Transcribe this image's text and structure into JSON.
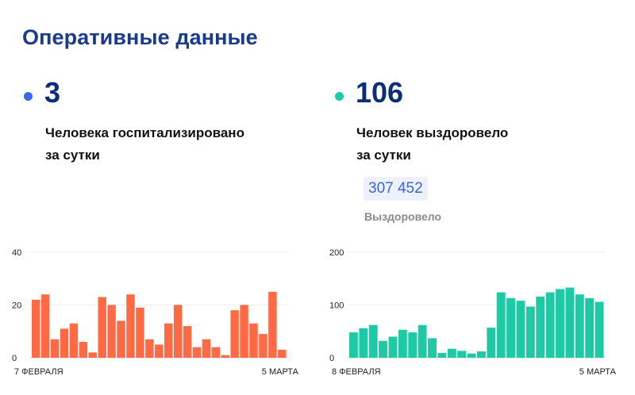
{
  "header": {
    "title": "Оперативные данные"
  },
  "stats": {
    "hospitalized": {
      "value": "3",
      "label_line1": "Человека госпитализировано",
      "label_line2": "за сутки",
      "dot_color": "#3d6ae0"
    },
    "recovered": {
      "value": "106",
      "label_line1": "Человек выздоровело",
      "label_line2": "за сутки",
      "dot_color": "#1ec9a6",
      "total_value": "307 452",
      "total_label": "Выздоровело"
    }
  },
  "chart_data": [
    {
      "type": "bar",
      "color": "#ff6a45",
      "ylim": [
        0,
        40
      ],
      "yticks": [
        "0",
        "20",
        "40"
      ],
      "start_label": "7 ФЕВРАЛЯ",
      "end_label": "5 МАРТА",
      "values": [
        22,
        24,
        7,
        11,
        13,
        6,
        2,
        23,
        20,
        14,
        24,
        19,
        7,
        5,
        13,
        20,
        12,
        4,
        7,
        4,
        1,
        18,
        20,
        13,
        9,
        25,
        3
      ]
    },
    {
      "type": "bar",
      "color": "#1ec9a6",
      "ylim": [
        0,
        200
      ],
      "yticks": [
        "0",
        "100",
        "200"
      ],
      "start_label": "8 ФЕВРАЛЯ",
      "end_label": "5 МАРТА",
      "values": [
        48,
        56,
        62,
        32,
        40,
        53,
        48,
        62,
        37,
        9,
        17,
        13,
        8,
        12,
        57,
        124,
        113,
        108,
        97,
        116,
        124,
        130,
        133,
        120,
        113,
        106
      ]
    }
  ]
}
